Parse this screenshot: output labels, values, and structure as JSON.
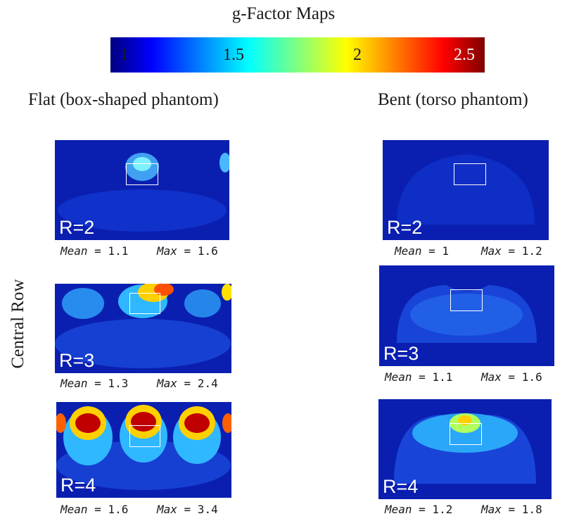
{
  "title": "g-Factor Maps",
  "colorbar": {
    "ticks": [
      "1",
      "1.5",
      "2",
      "2.5"
    ]
  },
  "columns": {
    "left": "Flat (box-shaped phantom)",
    "right": "Bent (torso phantom)"
  },
  "row_label": "Central Row",
  "panels": [
    {
      "label": "R=2",
      "mean": "Mean = 1.1",
      "max": "Max = 1.6"
    },
    {
      "label": "R=3",
      "mean": "Mean = 1.3",
      "max": "Max = 2.4"
    },
    {
      "label": "R=4",
      "mean": "Mean = 1.6",
      "max": "Max = 3.4"
    },
    {
      "label": "R=2",
      "mean": "Mean = 1",
      "max": "Max = 1.2"
    },
    {
      "label": "R=3",
      "mean": "Mean = 1.1",
      "max": "Max = 1.6"
    },
    {
      "label": "R=4",
      "mean": "Mean = 1.2",
      "max": "Max = 1.8"
    }
  ]
}
